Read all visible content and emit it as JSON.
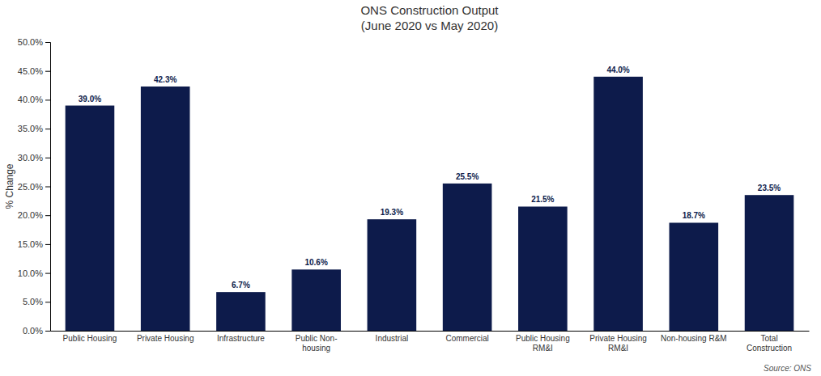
{
  "chart_data": {
    "type": "bar",
    "title": "ONS Construction Output",
    "subtitle": "(June 2020 vs May 2020)",
    "categories": [
      "Public Housing",
      "Private Housing",
      "Infrastructure",
      "Public Non-\nhousing",
      "Industrial",
      "Commercial",
      "Public Housing\nRM&I",
      "Private Housing\nRM&I",
      "Non-housing R&M",
      "Total\nConstruction"
    ],
    "values": [
      39.0,
      42.3,
      6.7,
      10.6,
      19.3,
      25.5,
      21.5,
      44.0,
      18.7,
      23.5
    ],
    "value_labels": [
      "39.0%",
      "42.3%",
      "6.7%",
      "10.6%",
      "19.3%",
      "25.5%",
      "21.5%",
      "44.0%",
      "18.7%",
      "23.5%"
    ],
    "data_labels": true,
    "color": "#0d1b4b",
    "y_label": "% Change",
    "ylim": [
      0,
      50
    ],
    "yticks": [
      {
        "value": 0,
        "label": "0.0%"
      },
      {
        "value": 5,
        "label": "5.0%"
      },
      {
        "value": 10,
        "label": "10.0%"
      },
      {
        "value": 15,
        "label": "15.0%"
      },
      {
        "value": 20,
        "label": "20.0%"
      },
      {
        "value": 25,
        "label": "25.0%"
      },
      {
        "value": 30,
        "label": "30.0%"
      },
      {
        "value": 35,
        "label": "35.0%"
      },
      {
        "value": 40,
        "label": "40.0%"
      },
      {
        "value": 45,
        "label": "45.0%"
      },
      {
        "value": 50,
        "label": "50.0%"
      }
    ],
    "grid": false,
    "source": "Source: ONS"
  }
}
